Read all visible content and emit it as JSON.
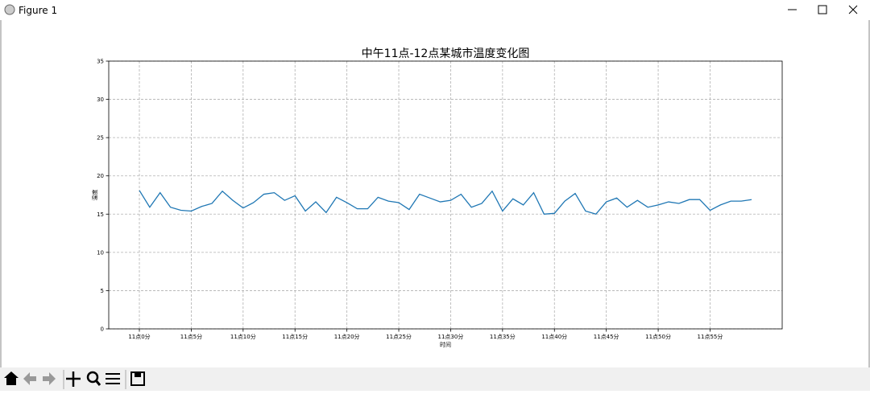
{
  "window": {
    "title": "Figure 1"
  },
  "chart_data": {
    "type": "line",
    "title": "中午11点-12点某城市温度变化图",
    "x_label": "时间",
    "y_label": "温度",
    "x": [
      0,
      1,
      2,
      3,
      4,
      5,
      6,
      7,
      8,
      9,
      10,
      11,
      12,
      13,
      14,
      15,
      16,
      17,
      18,
      19,
      20,
      21,
      22,
      23,
      24,
      25,
      26,
      27,
      28,
      29,
      30,
      31,
      32,
      33,
      34,
      35,
      36,
      37,
      38,
      39,
      40,
      41,
      42,
      43,
      44,
      45,
      46,
      47,
      48,
      49,
      50,
      51,
      52,
      53,
      54,
      55,
      56,
      57,
      58,
      59
    ],
    "series": [
      {
        "color": "#1f77b4",
        "values": [
          18.1,
          15.9,
          17.8,
          15.9,
          15.5,
          15.4,
          16.0,
          16.4,
          18.0,
          16.8,
          15.8,
          16.5,
          17.6,
          17.8,
          16.8,
          17.4,
          15.4,
          16.6,
          15.2,
          17.2,
          16.5,
          15.7,
          15.7,
          17.2,
          16.7,
          16.5,
          15.6,
          17.6,
          17.1,
          16.6,
          16.8,
          17.6,
          15.9,
          16.4,
          18.0,
          15.4,
          17.0,
          16.2,
          17.8,
          15.0,
          15.1,
          16.7,
          17.7,
          15.4,
          15.0,
          16.6,
          17.1,
          15.9,
          16.8,
          15.9,
          16.2,
          16.6,
          16.4,
          16.9,
          16.9,
          15.5,
          16.2,
          16.7,
          16.7,
          16.9
        ]
      }
    ],
    "xlim": [
      -2.95,
      61.95
    ],
    "ylim": [
      0,
      35
    ],
    "xticks": [
      {
        "value": 0,
        "label": "11点0分"
      },
      {
        "value": 5,
        "label": "11点5分"
      },
      {
        "value": 10,
        "label": "11点10分"
      },
      {
        "value": 15,
        "label": "11点15分"
      },
      {
        "value": 20,
        "label": "11点20分"
      },
      {
        "value": 25,
        "label": "11点25分"
      },
      {
        "value": 30,
        "label": "11点30分"
      },
      {
        "value": 35,
        "label": "11点35分"
      },
      {
        "value": 40,
        "label": "11点40分"
      },
      {
        "value": 45,
        "label": "11点45分"
      },
      {
        "value": 50,
        "label": "11点50分"
      },
      {
        "value": 55,
        "label": "11点55分"
      }
    ],
    "yticks": [
      0,
      5,
      10,
      15,
      20,
      25,
      30,
      35
    ],
    "grid": true
  }
}
